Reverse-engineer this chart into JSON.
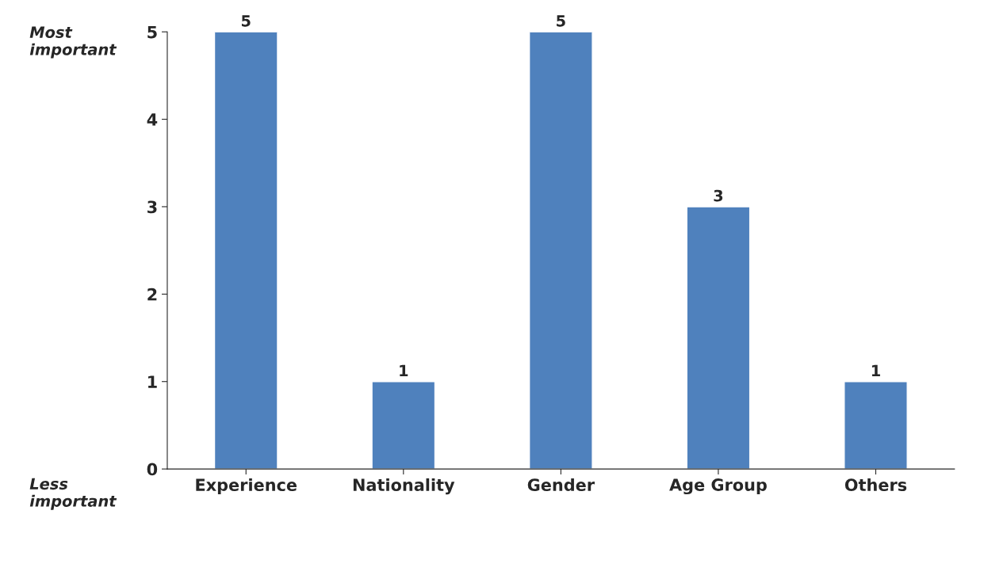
{
  "chart_data": {
    "type": "bar",
    "categories": [
      "Experience",
      "Nationality",
      "Gender",
      "Age Group",
      "Others"
    ],
    "values": [
      5,
      1,
      5,
      3,
      1
    ],
    "color": "#4f81bd",
    "ylim": [
      0,
      5
    ],
    "yticks": [
      0,
      1,
      2,
      3,
      4,
      5
    ],
    "grid": false,
    "data_labels": true,
    "annotations": [
      "Most\nimportant",
      "Less\nimportant"
    ]
  }
}
